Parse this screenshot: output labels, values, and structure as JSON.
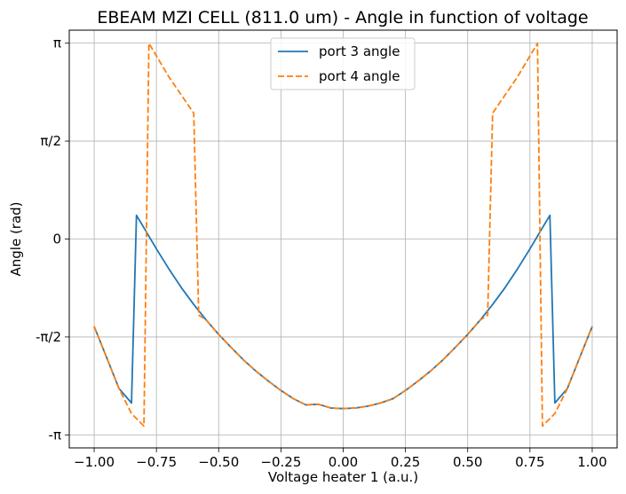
{
  "chart_data": {
    "type": "line",
    "title": "EBEAM MZI CELL (811.0 um)  -  Angle in function of voltage",
    "xlabel": "Voltage heater 1 (a.u.)",
    "ylabel": "Angle (rad)",
    "xlim": [
      -1.1,
      1.1
    ],
    "ylim": [
      -3.35,
      3.35
    ],
    "grid": true,
    "legend_position": "top-center",
    "x_ticks": [
      {
        "value": -1.0,
        "label": "−1.00"
      },
      {
        "value": -0.75,
        "label": "−0.75"
      },
      {
        "value": -0.5,
        "label": "−0.50"
      },
      {
        "value": -0.25,
        "label": "−0.25"
      },
      {
        "value": 0.0,
        "label": "0.00"
      },
      {
        "value": 0.25,
        "label": "0.25"
      },
      {
        "value": 0.5,
        "label": "0.50"
      },
      {
        "value": 0.75,
        "label": "0.75"
      },
      {
        "value": 1.0,
        "label": "1.00"
      }
    ],
    "y_ticks": [
      {
        "value": -3.1416,
        "label": "-π"
      },
      {
        "value": -1.5708,
        "label": "-π/2"
      },
      {
        "value": 0.0,
        "label": "0"
      },
      {
        "value": 1.5708,
        "label": "π/2"
      },
      {
        "value": 3.1416,
        "label": "π"
      }
    ],
    "series": [
      {
        "name": "port 3 angle",
        "color": "#1f77b4",
        "dash": "solid",
        "points": [
          [
            -1.0,
            -1.4
          ],
          [
            -0.95,
            -1.9
          ],
          [
            -0.9,
            -2.4
          ],
          [
            -0.85,
            -2.63
          ],
          [
            -0.83,
            0.38
          ],
          [
            -0.8,
            0.18
          ],
          [
            -0.75,
            -0.16
          ],
          [
            -0.7,
            -0.48
          ],
          [
            -0.65,
            -0.78
          ],
          [
            -0.6,
            -1.05
          ],
          [
            -0.55,
            -1.3
          ],
          [
            -0.5,
            -1.53
          ],
          [
            -0.45,
            -1.74
          ],
          [
            -0.4,
            -1.94
          ],
          [
            -0.35,
            -2.12
          ],
          [
            -0.3,
            -2.28
          ],
          [
            -0.25,
            -2.43
          ],
          [
            -0.2,
            -2.56
          ],
          [
            -0.15,
            -2.66
          ],
          [
            -0.1,
            -2.65
          ],
          [
            -0.05,
            -2.71
          ],
          [
            0.0,
            -2.72
          ],
          [
            0.05,
            -2.71
          ],
          [
            0.1,
            -2.68
          ],
          [
            0.15,
            -2.63
          ],
          [
            0.2,
            -2.56
          ],
          [
            0.25,
            -2.43
          ],
          [
            0.3,
            -2.28
          ],
          [
            0.35,
            -2.12
          ],
          [
            0.4,
            -1.94
          ],
          [
            0.45,
            -1.74
          ],
          [
            0.5,
            -1.53
          ],
          [
            0.55,
            -1.3
          ],
          [
            0.6,
            -1.05
          ],
          [
            0.65,
            -0.78
          ],
          [
            0.7,
            -0.48
          ],
          [
            0.75,
            -0.16
          ],
          [
            0.8,
            0.18
          ],
          [
            0.83,
            0.38
          ],
          [
            0.85,
            -2.63
          ],
          [
            0.9,
            -2.4
          ],
          [
            0.95,
            -1.9
          ],
          [
            1.0,
            -1.4
          ]
        ]
      },
      {
        "name": "port 4 angle",
        "color": "#ff7f0e",
        "dash": "dashed",
        "points": [
          [
            -1.0,
            -1.4
          ],
          [
            -0.95,
            -1.9
          ],
          [
            -0.9,
            -2.4
          ],
          [
            -0.85,
            -2.8
          ],
          [
            -0.8,
            -3.0
          ],
          [
            -0.78,
            3.14
          ],
          [
            -0.7,
            2.6
          ],
          [
            -0.6,
            2.02
          ],
          [
            -0.58,
            -1.22
          ],
          [
            -0.55,
            -1.3
          ],
          [
            -0.5,
            -1.53
          ],
          [
            -0.45,
            -1.74
          ],
          [
            -0.4,
            -1.94
          ],
          [
            -0.35,
            -2.12
          ],
          [
            -0.3,
            -2.28
          ],
          [
            -0.25,
            -2.43
          ],
          [
            -0.2,
            -2.56
          ],
          [
            -0.15,
            -2.66
          ],
          [
            -0.1,
            -2.65
          ],
          [
            -0.05,
            -2.71
          ],
          [
            0.0,
            -2.72
          ],
          [
            0.05,
            -2.71
          ],
          [
            0.1,
            -2.68
          ],
          [
            0.15,
            -2.63
          ],
          [
            0.2,
            -2.56
          ],
          [
            0.25,
            -2.43
          ],
          [
            0.3,
            -2.28
          ],
          [
            0.35,
            -2.12
          ],
          [
            0.4,
            -1.94
          ],
          [
            0.45,
            -1.74
          ],
          [
            0.5,
            -1.53
          ],
          [
            0.55,
            -1.3
          ],
          [
            0.58,
            -1.22
          ],
          [
            0.6,
            2.02
          ],
          [
            0.7,
            2.6
          ],
          [
            0.78,
            3.14
          ],
          [
            0.8,
            -3.0
          ],
          [
            0.85,
            -2.8
          ],
          [
            0.9,
            -2.4
          ],
          [
            0.95,
            -1.9
          ],
          [
            1.0,
            -1.4
          ]
        ]
      }
    ]
  }
}
